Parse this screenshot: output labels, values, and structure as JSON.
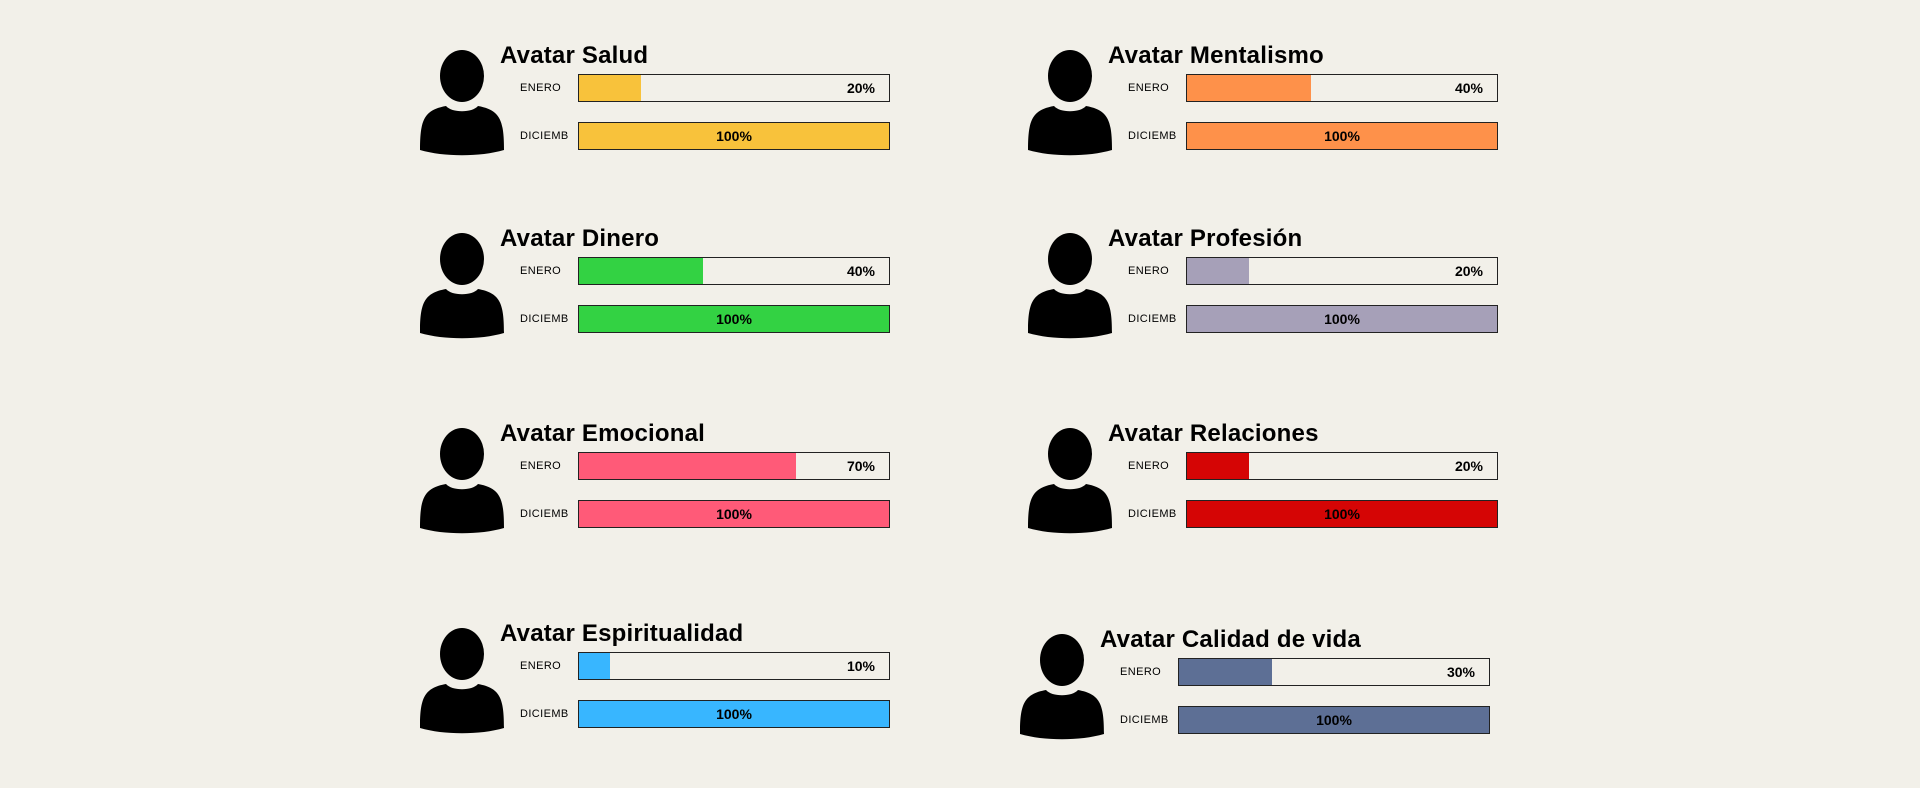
{
  "chart_data": {
    "type": "bar",
    "row_labels": [
      "ENERO",
      "DICIEMB"
    ],
    "avatars": [
      {
        "title": "Avatar Salud",
        "color": "#f8c23b",
        "enero": 20,
        "enero_label": "20%",
        "diciembre": 100,
        "diciembre_label": "100%"
      },
      {
        "title": "Avatar Mentalismo",
        "color": "#fe914a",
        "enero": 40,
        "enero_label": "40%",
        "diciembre": 100,
        "diciembre_label": "100%"
      },
      {
        "title": "Avatar Dinero",
        "color": "#33d243",
        "enero": 40,
        "enero_label": "40%",
        "diciembre": 100,
        "diciembre_label": "100%"
      },
      {
        "title": "Avatar Profesión",
        "color": "#a6a0b8",
        "enero": 20,
        "enero_label": "20%",
        "diciembre": 100,
        "diciembre_label": "100%"
      },
      {
        "title": "Avatar Emocional",
        "color": "#ff5a78",
        "enero": 70,
        "enero_label": "70%",
        "diciembre": 100,
        "diciembre_label": "100%"
      },
      {
        "title": "Avatar Relaciones",
        "color": "#d50505",
        "enero": 20,
        "enero_label": "20%",
        "diciembre": 100,
        "diciembre_label": "100%"
      },
      {
        "title": "Avatar Espiritualidad",
        "color": "#38b6ff",
        "enero": 10,
        "enero_label": "10%",
        "diciembre": 100,
        "diciembre_label": "100%"
      },
      {
        "title": "Avatar Calidad de vida",
        "color": "#5d6f95",
        "enero": 30,
        "enero_label": "30%",
        "diciembre": 100,
        "diciembre_label": "100%"
      }
    ],
    "icon": "person-silhouette-icon"
  }
}
